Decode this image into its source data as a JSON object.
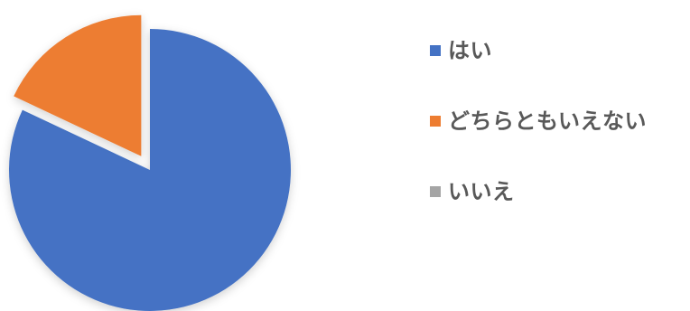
{
  "chart_data": {
    "type": "pie",
    "title": "",
    "categories": [
      "はい",
      "どちらともいえない",
      "いいえ"
    ],
    "values": [
      82,
      18,
      0
    ],
    "colors": [
      "#4472c4",
      "#ed7d31",
      "#a5a5a5"
    ],
    "legend": {
      "placement": "right"
    }
  }
}
